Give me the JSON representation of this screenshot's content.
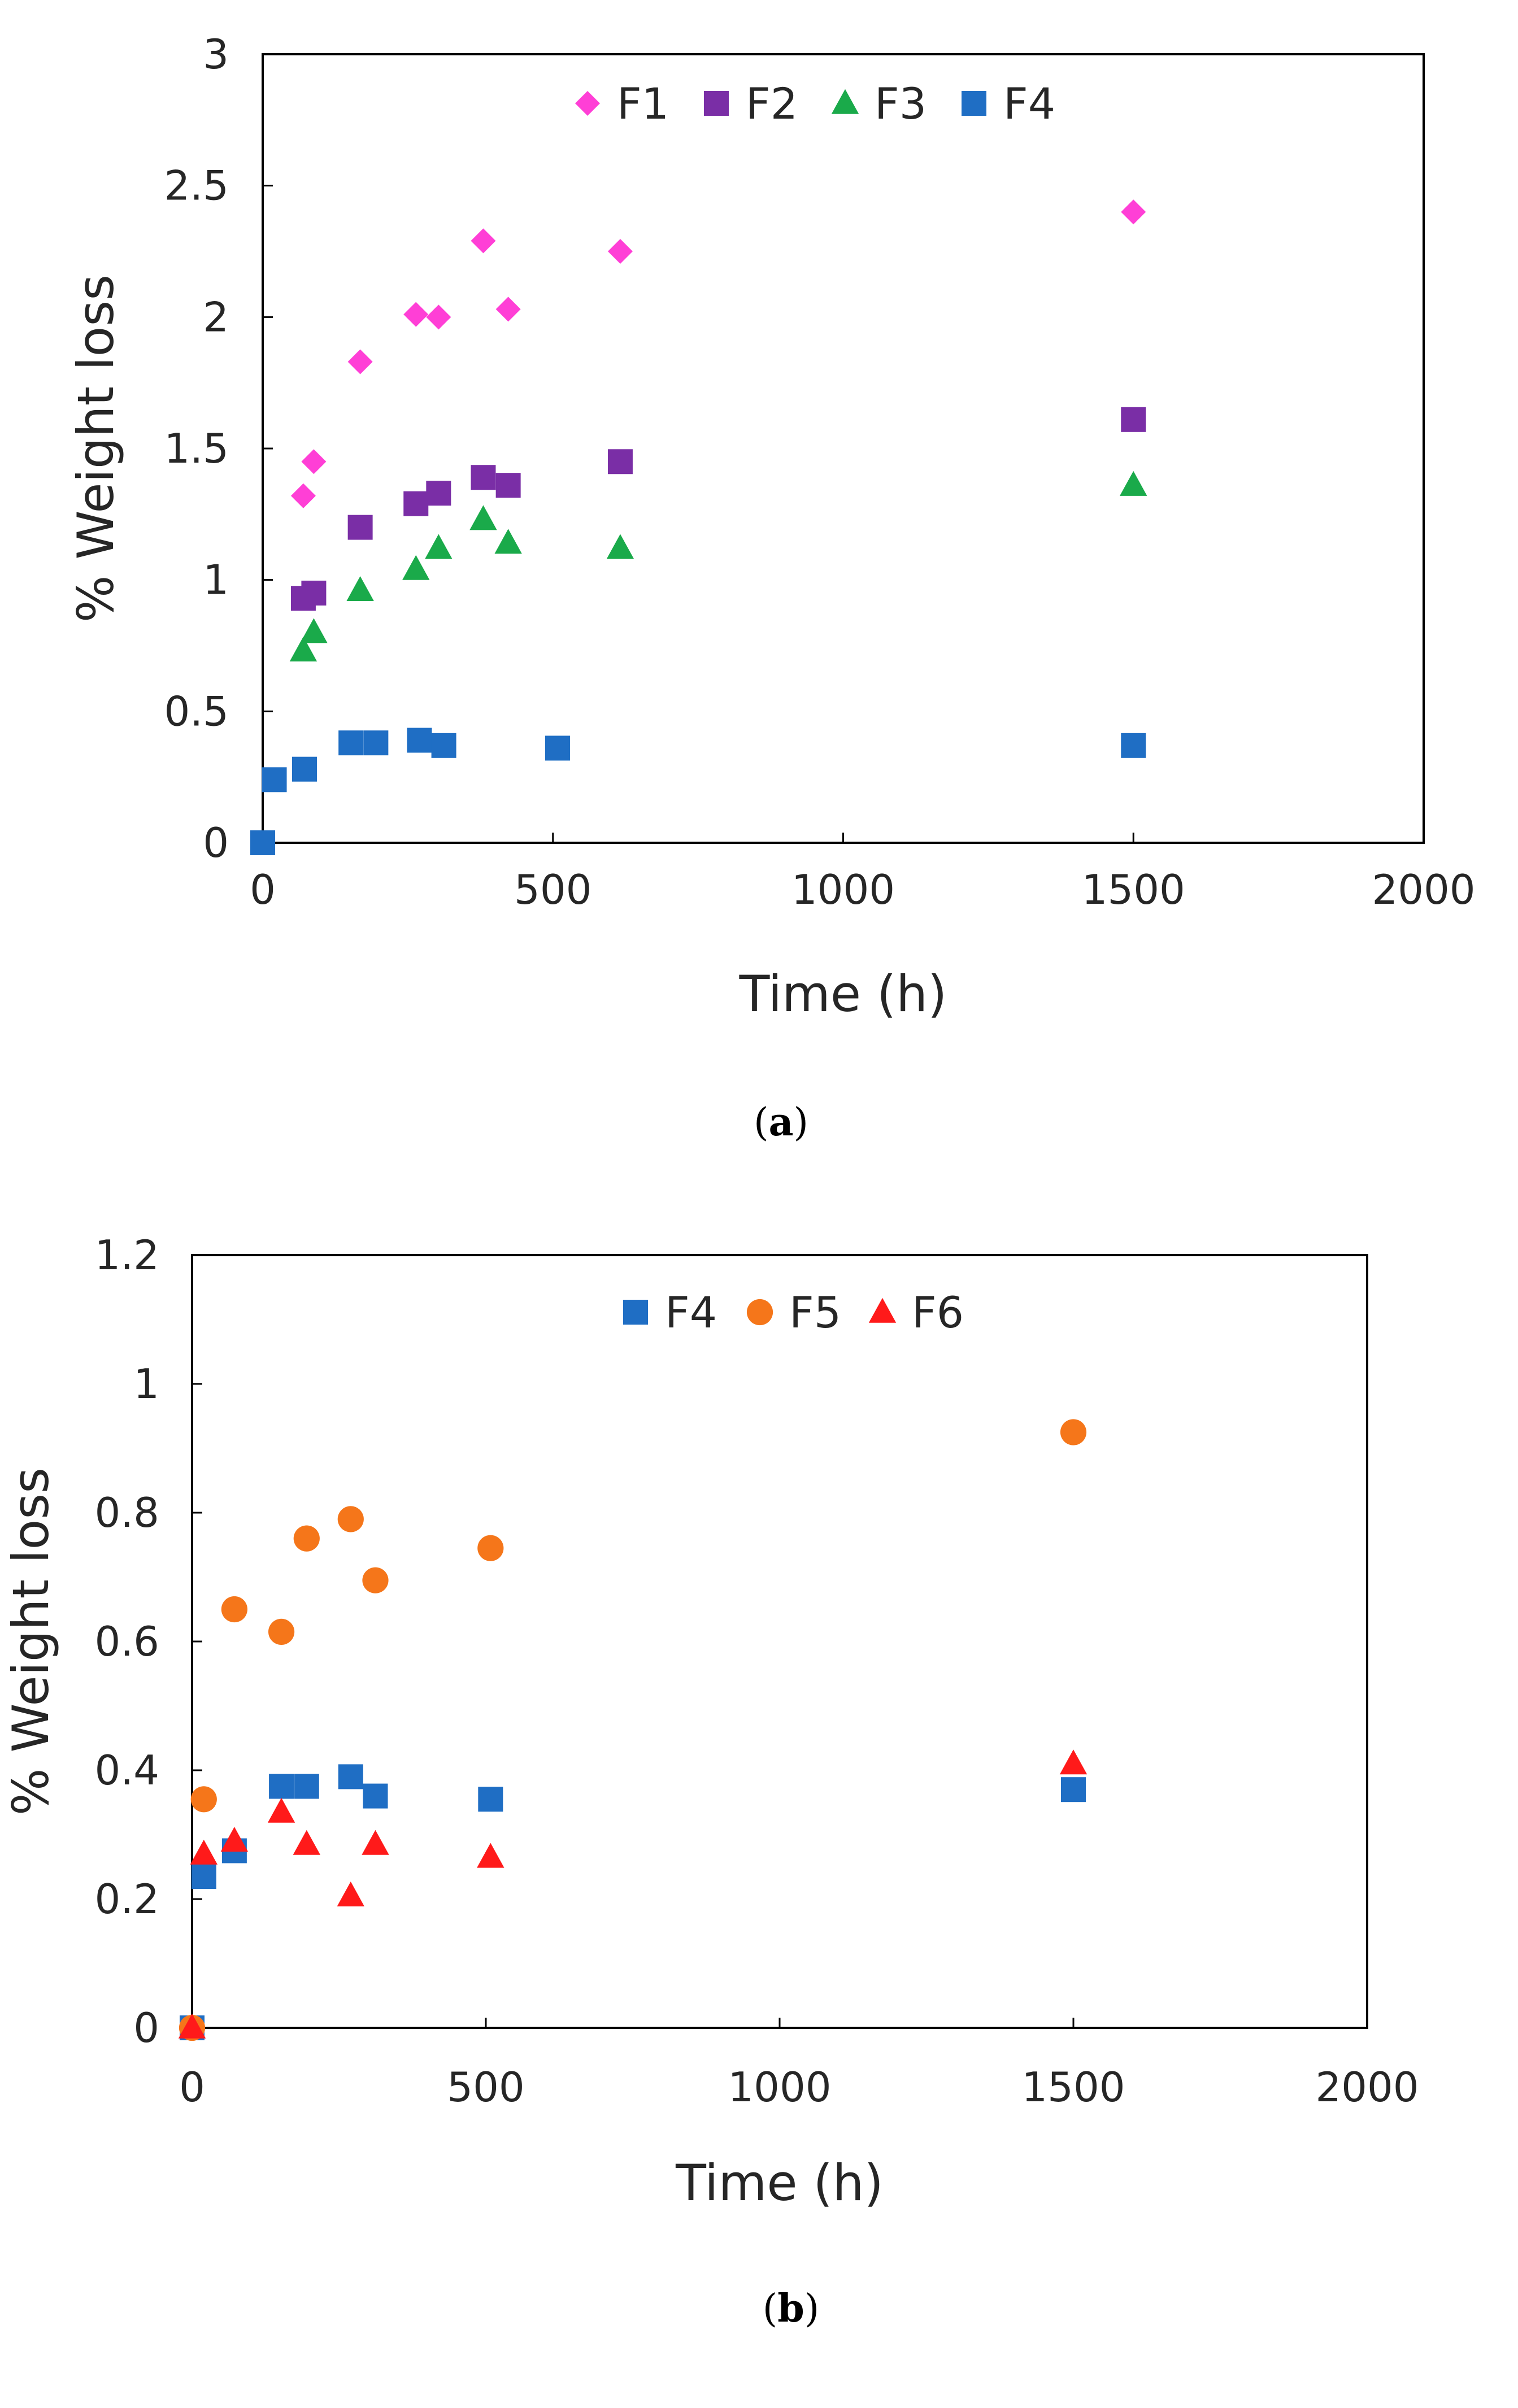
{
  "chart_data": [
    {
      "type": "scatter",
      "panel": "a",
      "caption": {
        "open": "(",
        "letter": "a",
        "close": ")"
      },
      "xlabel": "Time (h)",
      "ylabel": "% Weight loss",
      "xlim": [
        0,
        2000
      ],
      "ylim": [
        0,
        3
      ],
      "x_ticks": [
        "0",
        "500",
        "1000",
        "1500",
        "2000"
      ],
      "x_tick_values": [
        0,
        500,
        1000,
        1500,
        2000
      ],
      "y_ticks": [
        "0",
        "0.5",
        "1",
        "1.5",
        "2",
        "2.5",
        "3"
      ],
      "y_tick_values": [
        0,
        0.5,
        1,
        1.5,
        2,
        2.5,
        3
      ],
      "legend_position": "top-center",
      "series": [
        {
          "name": "F1",
          "color": "#ff3fd6",
          "marker": "diamond",
          "x": [
            70,
            88,
            168,
            264,
            303,
            380,
            423,
            616,
            1500
          ],
          "y": [
            1.32,
            1.45,
            1.83,
            2.01,
            2.0,
            2.29,
            2.03,
            2.25,
            2.4
          ]
        },
        {
          "name": "F2",
          "color": "#7a2ea6",
          "marker": "square",
          "x": [
            70,
            88,
            168,
            264,
            303,
            380,
            423,
            616,
            1500
          ],
          "y": [
            0.93,
            0.95,
            1.2,
            1.29,
            1.33,
            1.39,
            1.36,
            1.45,
            1.61
          ]
        },
        {
          "name": "F3",
          "color": "#1aaa4a",
          "marker": "triangle",
          "x": [
            70,
            88,
            168,
            264,
            303,
            380,
            423,
            616,
            1500
          ],
          "y": [
            0.73,
            0.8,
            0.96,
            1.04,
            1.12,
            1.23,
            1.14,
            1.12,
            1.36
          ]
        },
        {
          "name": "F4",
          "color": "#1f6ec4",
          "marker": "square",
          "x": [
            0,
            20,
            72,
            152,
            195,
            270,
            312,
            508,
            1500
          ],
          "y": [
            0.0,
            0.24,
            0.28,
            0.38,
            0.38,
            0.39,
            0.37,
            0.36,
            0.37
          ]
        }
      ]
    },
    {
      "type": "scatter",
      "panel": "b",
      "caption": {
        "open": "(",
        "letter": "b",
        "close": ")"
      },
      "xlabel": "Time (h)",
      "ylabel": "% Weight loss",
      "xlim": [
        0,
        2000
      ],
      "ylim": [
        0,
        1.2
      ],
      "x_ticks": [
        "0",
        "500",
        "1000",
        "1500",
        "2000"
      ],
      "x_tick_values": [
        0,
        500,
        1000,
        1500,
        2000
      ],
      "y_ticks": [
        "0",
        "0.2",
        "0.4",
        "0.6",
        "0.8",
        "1",
        "1.2"
      ],
      "y_tick_values": [
        0,
        0.2,
        0.4,
        0.6,
        0.8,
        1.0,
        1.2
      ],
      "legend_position": "top-center",
      "series": [
        {
          "name": "F4",
          "color": "#1f6ec4",
          "marker": "square",
          "x": [
            0,
            20,
            72,
            152,
            195,
            270,
            312,
            508,
            1500
          ],
          "y": [
            0.0,
            0.235,
            0.275,
            0.375,
            0.375,
            0.39,
            0.36,
            0.355,
            0.37
          ]
        },
        {
          "name": "F5",
          "color": "#f5761a",
          "marker": "circle",
          "x": [
            0,
            20,
            72,
            152,
            195,
            270,
            312,
            508,
            1500
          ],
          "y": [
            0.0,
            0.355,
            0.65,
            0.615,
            0.76,
            0.79,
            0.695,
            0.745,
            0.925
          ]
        },
        {
          "name": "F6",
          "color": "#ff1a1a",
          "marker": "triangle",
          "x": [
            0,
            20,
            72,
            152,
            195,
            270,
            312,
            508,
            1500
          ],
          "y": [
            0.0,
            0.27,
            0.29,
            0.335,
            0.285,
            0.205,
            0.285,
            0.265,
            0.41
          ]
        }
      ]
    }
  ]
}
